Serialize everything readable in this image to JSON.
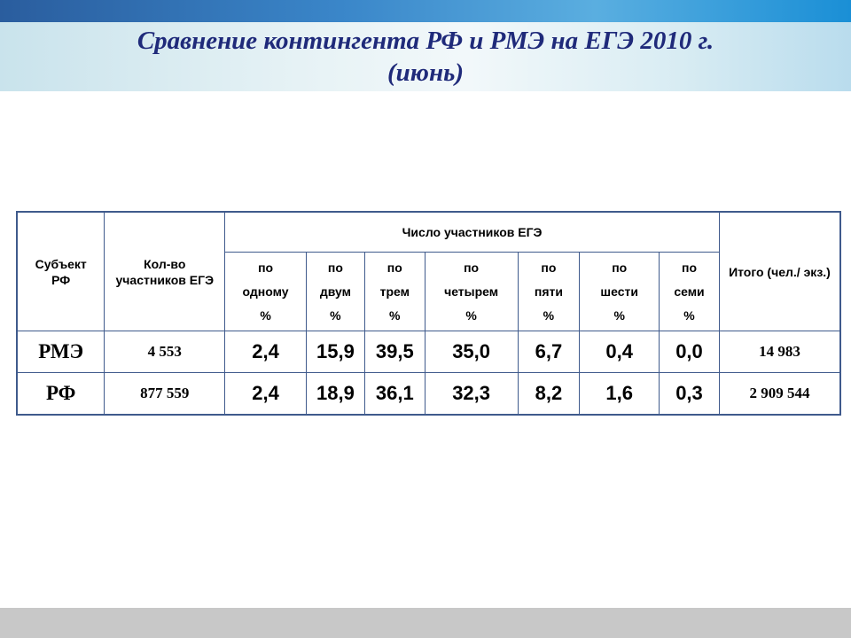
{
  "title": {
    "line1": "Сравнение контингента РФ и РМЭ на ЕГЭ 2010 г.",
    "line2": "(июнь)"
  },
  "table": {
    "col_subject": "Субъект РФ",
    "col_count": "Кол-во участников ЕГЭ",
    "col_group": "Число участников ЕГЭ",
    "col_total": "Итого (чел./ экз.)",
    "sub_columns": [
      {
        "line1": "по",
        "line2": "одному",
        "line3": "%"
      },
      {
        "line1": "по",
        "line2": "двум",
        "line3": "%"
      },
      {
        "line1": "по",
        "line2": "трем",
        "line3": "%"
      },
      {
        "line1": "по",
        "line2": "четырем",
        "line3": "%"
      },
      {
        "line1": "по",
        "line2": "пяти",
        "line3": "%"
      },
      {
        "line1": "по",
        "line2": "шести",
        "line3": "%"
      },
      {
        "line1": "по",
        "line2": "семи",
        "line3": "%"
      }
    ],
    "rows": [
      {
        "subject": "РМЭ",
        "count": "4 553",
        "values": [
          "2,4",
          "15,9",
          "39,5",
          "35,0",
          "6,7",
          "0,4",
          "0,0"
        ],
        "total": "14 983"
      },
      {
        "subject": "РФ",
        "count": "877 559",
        "values": [
          "2,4",
          "18,9",
          "36,1",
          "32,3",
          "8,2",
          "1,6",
          "0,3"
        ],
        "total": "2 909 544"
      }
    ]
  }
}
